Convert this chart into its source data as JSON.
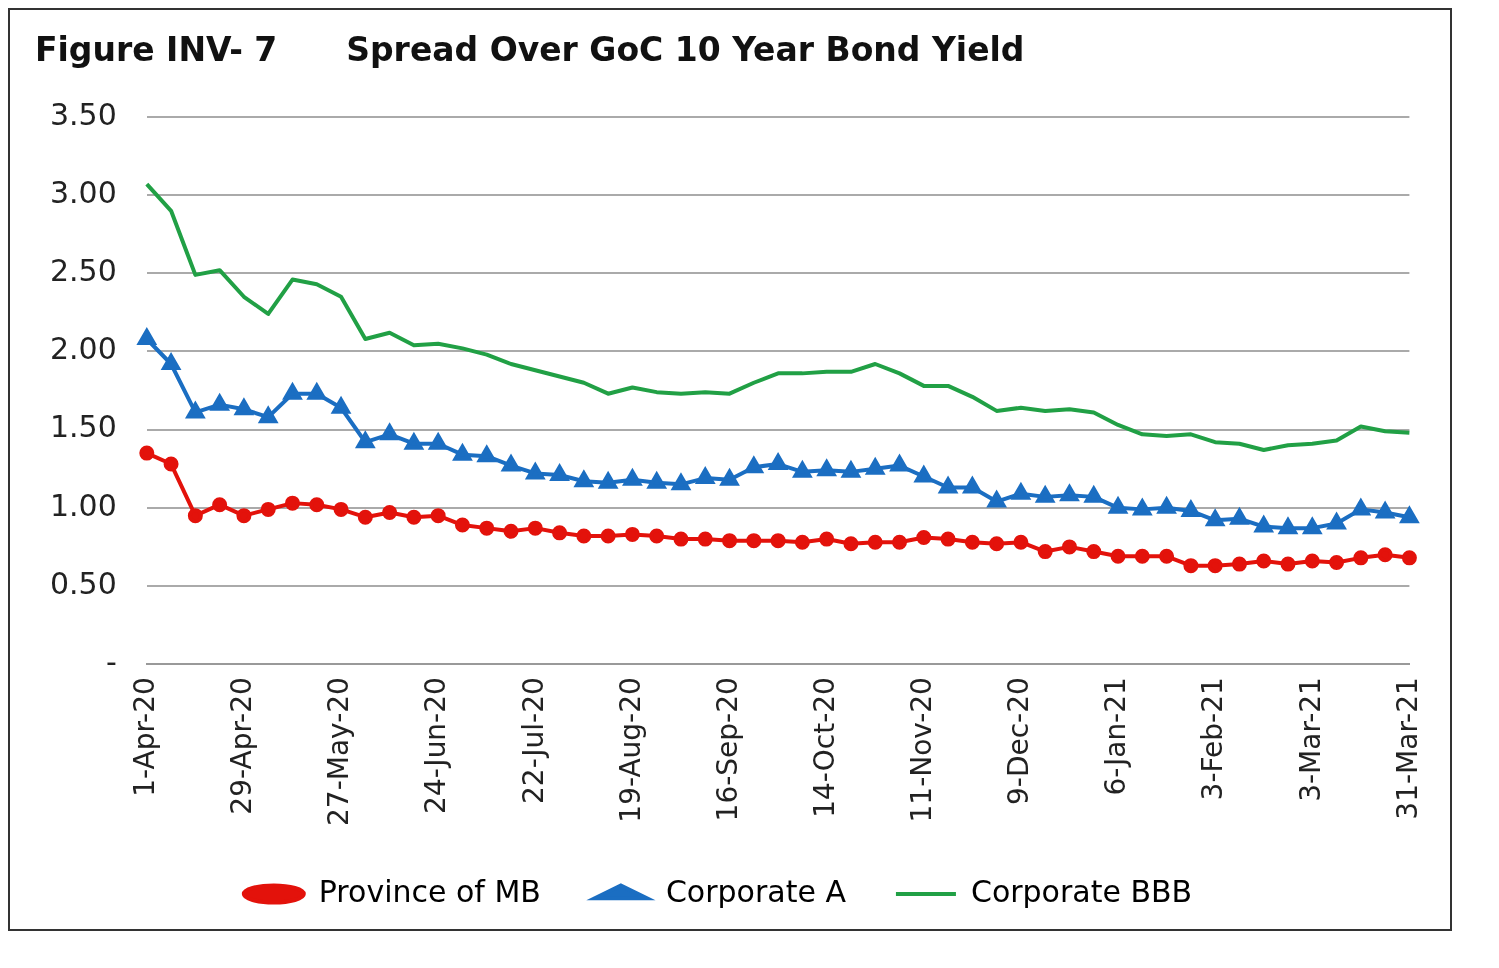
{
  "chart_data": {
    "type": "line",
    "title": "Figure INV- 7      Spread Over GoC 10 Year Bond Yield",
    "categories": [
      "1-Apr-20",
      null,
      null,
      null,
      "29-Apr-20",
      null,
      null,
      null,
      "27-May-20",
      null,
      null,
      null,
      "24-Jun-20",
      null,
      null,
      null,
      "22-Jul-20",
      null,
      null,
      null,
      "19-Aug-20",
      null,
      null,
      null,
      "16-Sep-20",
      null,
      null,
      null,
      "14-Oct-20",
      null,
      null,
      null,
      "11-Nov-20",
      null,
      null,
      null,
      "9-Dec-20",
      null,
      null,
      null,
      "6-Jan-21",
      null,
      null,
      null,
      "3-Feb-21",
      null,
      null,
      null,
      "3-Mar-21",
      null,
      null,
      null,
      "31-Mar-21"
    ],
    "series": [
      {
        "name": "Province of MB",
        "color": "#e3120b",
        "marker": "circle",
        "values": [
          1.35,
          1.28,
          0.95,
          1.02,
          0.95,
          0.99,
          1.03,
          1.02,
          0.99,
          0.94,
          0.97,
          0.94,
          0.95,
          0.89,
          0.87,
          0.85,
          0.87,
          0.84,
          0.82,
          0.82,
          0.83,
          0.82,
          0.8,
          0.8,
          0.79,
          0.79,
          0.79,
          0.78,
          0.8,
          0.77,
          0.78,
          0.78,
          0.81,
          0.8,
          0.78,
          0.77,
          0.78,
          0.72,
          0.75,
          0.72,
          0.69,
          0.69,
          0.69,
          0.63,
          0.63,
          0.64,
          0.66,
          0.64,
          0.66,
          0.65,
          0.68,
          0.7,
          0.68
        ]
      },
      {
        "name": "Corporate A",
        "color": "#1b6ec2",
        "marker": "triangle",
        "values": [
          2.08,
          1.92,
          1.61,
          1.66,
          1.63,
          1.58,
          1.73,
          1.73,
          1.64,
          1.42,
          1.47,
          1.41,
          1.41,
          1.34,
          1.33,
          1.27,
          1.22,
          1.21,
          1.17,
          1.16,
          1.18,
          1.16,
          1.15,
          1.19,
          1.18,
          1.26,
          1.28,
          1.23,
          1.24,
          1.23,
          1.25,
          1.27,
          1.2,
          1.13,
          1.13,
          1.04,
          1.09,
          1.07,
          1.08,
          1.07,
          1.0,
          0.99,
          1.0,
          0.98,
          0.92,
          0.93,
          0.88,
          0.87,
          0.87,
          0.9,
          0.99,
          0.97,
          0.94
        ]
      },
      {
        "name": "Corporate BBB",
        "color": "#21a045",
        "marker": "none",
        "values": [
          3.07,
          2.9,
          2.49,
          2.52,
          2.35,
          2.24,
          2.46,
          2.43,
          2.35,
          2.08,
          2.12,
          2.04,
          2.05,
          2.02,
          1.98,
          1.92,
          1.88,
          1.84,
          1.8,
          1.73,
          1.77,
          1.74,
          1.73,
          1.74,
          1.73,
          1.8,
          1.86,
          1.86,
          1.87,
          1.87,
          1.92,
          1.86,
          1.78,
          1.78,
          1.71,
          1.62,
          1.64,
          1.62,
          1.63,
          1.61,
          1.53,
          1.47,
          1.46,
          1.47,
          1.42,
          1.41,
          1.37,
          1.4,
          1.41,
          1.43,
          1.52,
          1.49,
          1.48
        ]
      }
    ],
    "ylim": [
      0,
      3.5
    ],
    "yticks": [
      {
        "value": 0,
        "label": "-"
      },
      {
        "value": 0.5,
        "label": "0.50"
      },
      {
        "value": 1,
        "label": "1.00"
      },
      {
        "value": 1.5,
        "label": "1.50"
      },
      {
        "value": 2,
        "label": "2.00"
      },
      {
        "value": 2.5,
        "label": "2.50"
      },
      {
        "value": 3,
        "label": "3.00"
      },
      {
        "value": 3.5,
        "label": "3.50"
      }
    ],
    "grid": "y",
    "legend": "bottom"
  }
}
